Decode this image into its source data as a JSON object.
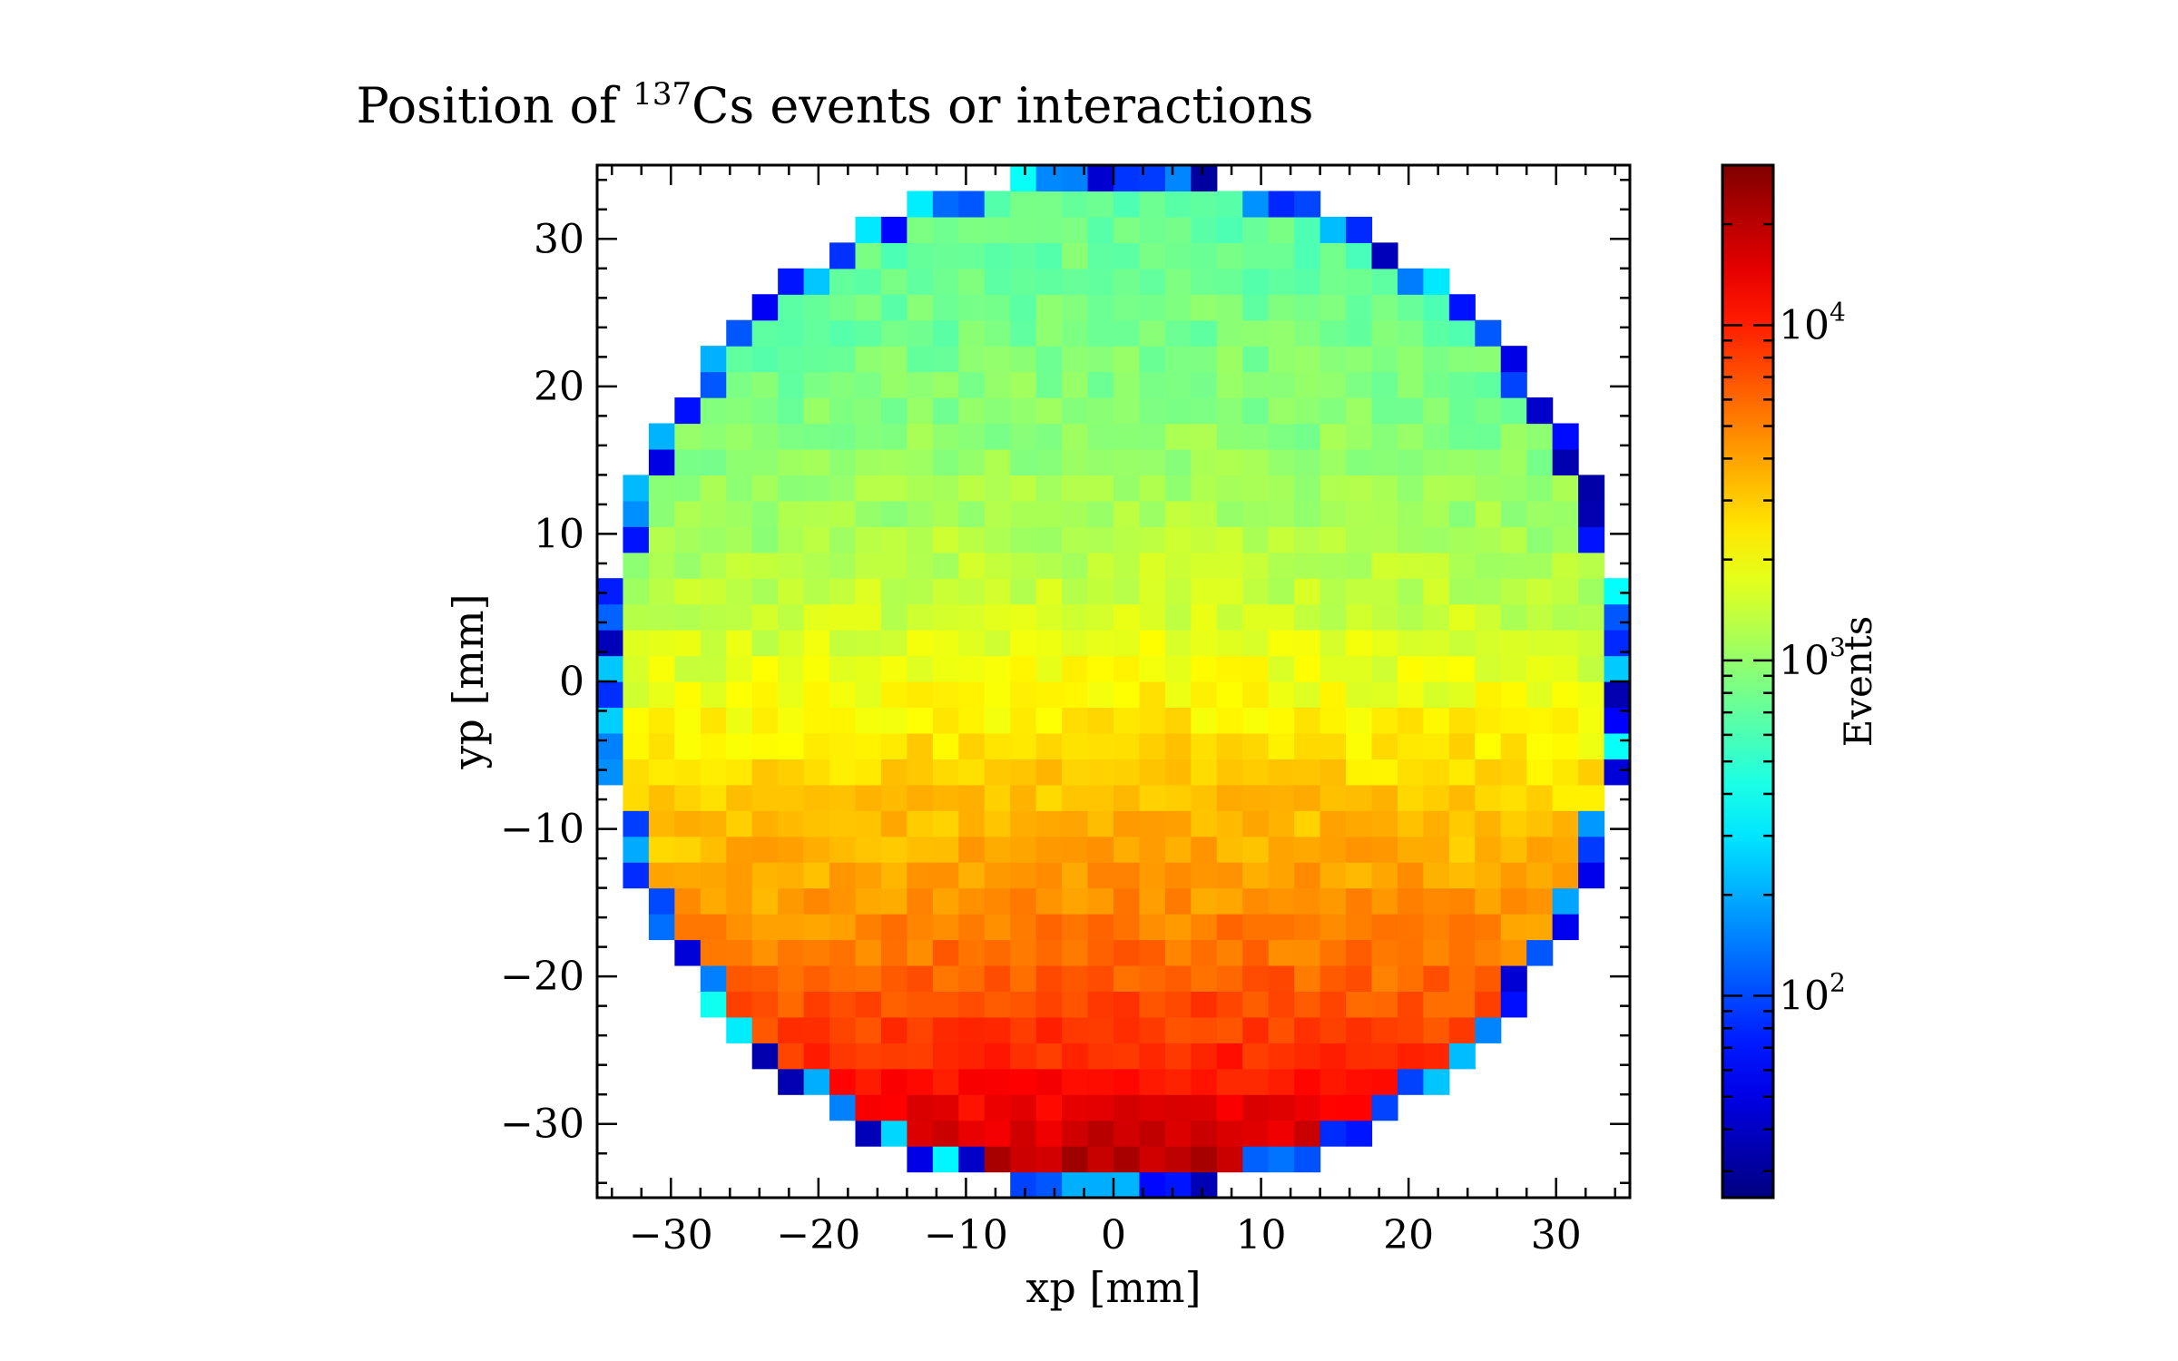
{
  "chart_data": {
    "type": "heatmap",
    "title": {
      "prefix": "Position of ",
      "superscript": "137",
      "suffix": "Cs events or interactions"
    },
    "xlabel": "xp [mm]",
    "ylabel": "yp [mm]",
    "colorbar_label": "Events",
    "xlim": [
      -35,
      35
    ],
    "ylim": [
      -35,
      35
    ],
    "x_ticks": [
      -30,
      -20,
      -10,
      0,
      10,
      20,
      30
    ],
    "y_ticks": [
      -30,
      -20,
      -10,
      0,
      10,
      20,
      30
    ],
    "x_tick_labels": [
      "−30",
      "−20",
      "−10",
      "0",
      "10",
      "20",
      "30"
    ],
    "y_tick_labels": [
      "−30",
      "−20",
      "−10",
      "0",
      "10",
      "20",
      "30"
    ],
    "bins": {
      "n": 40,
      "range": [
        -35,
        35
      ]
    },
    "data_region": {
      "shape": "circle",
      "radius": 35
    },
    "colormap": "jet",
    "color_scale": "log",
    "color_range": [
      25,
      30000
    ],
    "colorbar_ticks": [
      {
        "value": 100,
        "base": "10",
        "exp": "2"
      },
      {
        "value": 1000,
        "base": "10",
        "exp": "3"
      },
      {
        "value": 10000,
        "base": "10",
        "exp": "4"
      }
    ],
    "value_profile": {
      "description": "counts per bin vs yp (center of detector), falling from bottom to top",
      "y": [
        -34,
        -30,
        -25,
        -20,
        -15,
        -10,
        -5,
        0,
        5,
        10,
        15,
        20,
        25,
        30,
        34
      ],
      "events": [
        25000,
        16000,
        9500,
        6800,
        4800,
        3800,
        2900,
        2100,
        1600,
        1300,
        1100,
        950,
        850,
        780,
        720
      ]
    },
    "edge_low_counts": [
      30,
      400
    ],
    "grid": false
  }
}
